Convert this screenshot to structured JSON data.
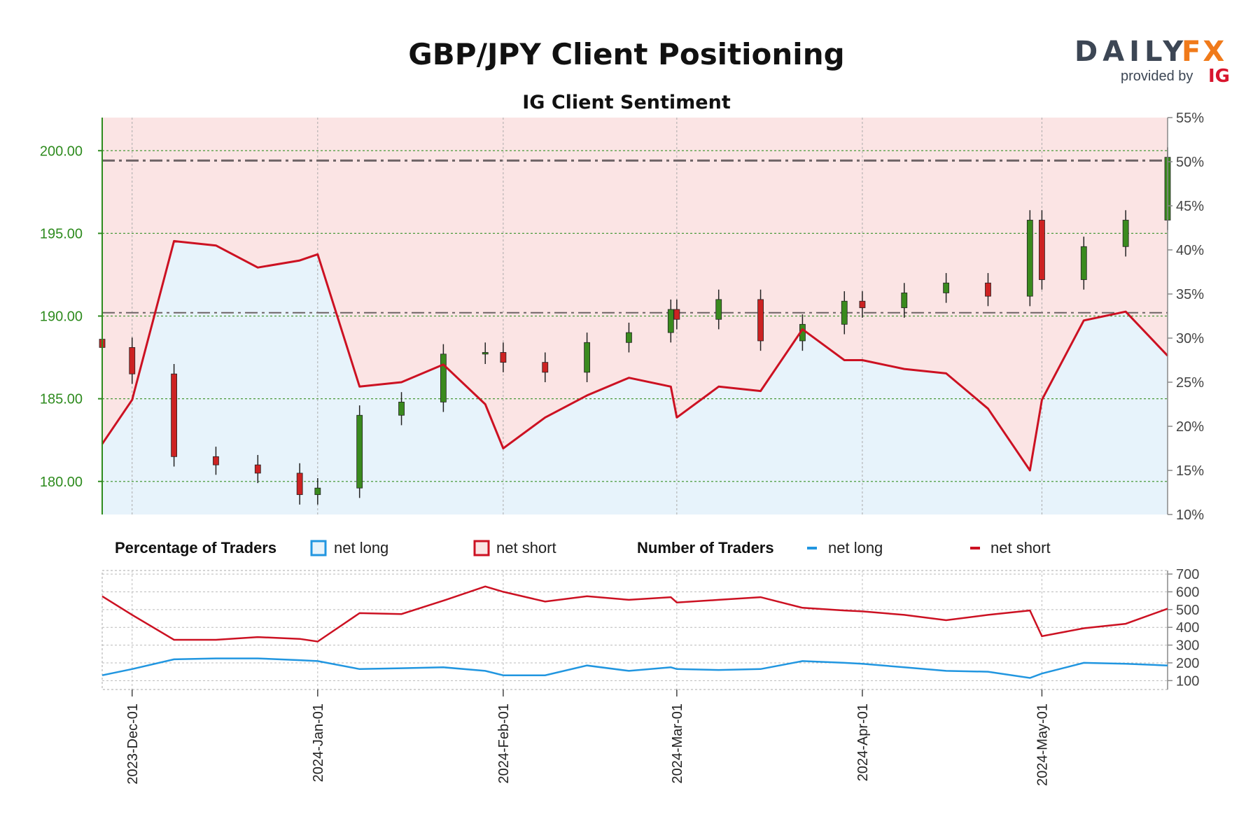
{
  "title": "GBP/JPY Client Positioning",
  "subtitle": "IG Client Sentiment",
  "brand": {
    "logo_left": "DAILY",
    "logo_right": "FX",
    "provided_by": "provided by",
    "ig": "IG",
    "colors": {
      "dark": "#3c4654",
      "orange": "#f07a1a",
      "ig_red": "#d8152d"
    }
  },
  "colors": {
    "price_axis": "#2e8b1e",
    "net_long_fill": "#e7f3fb",
    "net_short_fill": "#fbe4e4",
    "sentiment_line": "#cc1122",
    "long_line": "#2196e0",
    "short_line": "#cc1122",
    "candle_up": "#3a8a1e",
    "candle_down": "#cc2222"
  },
  "legend": {
    "pct_title": "Percentage of Traders",
    "pct_long": "net long",
    "pct_short": "net short",
    "num_title": "Number of Traders",
    "num_long": "net long",
    "num_short": "net short"
  },
  "chart_data": {
    "type": "line",
    "dates": [
      "2023-11-26",
      "2023-12-01",
      "2023-12-08",
      "2023-12-15",
      "2023-12-22",
      "2023-12-29",
      "2024-01-01",
      "2024-01-08",
      "2024-01-15",
      "2024-01-22",
      "2024-01-29",
      "2024-02-01",
      "2024-02-08",
      "2024-02-15",
      "2024-02-22",
      "2024-02-29",
      "2024-03-01",
      "2024-03-08",
      "2024-03-15",
      "2024-03-22",
      "2024-03-29",
      "2024-04-01",
      "2024-04-08",
      "2024-04-15",
      "2024-04-22",
      "2024-04-29",
      "2024-05-01",
      "2024-05-08",
      "2024-05-15",
      "2024-05-22"
    ],
    "x_ticks": [
      "2023-Dec-01",
      "2024-Jan-01",
      "2024-Feb-01",
      "2024-Mar-01",
      "2024-Apr-01",
      "2024-May-01"
    ],
    "price_axis": {
      "ticks": [
        "180.00",
        "185.00",
        "190.00",
        "195.00",
        "200.00"
      ],
      "ylim": [
        178,
        202
      ]
    },
    "pct_axis": {
      "ticks": [
        "10%",
        "15%",
        "20%",
        "25%",
        "30%",
        "35%",
        "40%",
        "45%",
        "50%",
        "55%"
      ],
      "ylim": [
        10,
        55
      ]
    },
    "num_axis": {
      "ticks": [
        "100",
        "200",
        "300",
        "400",
        "500",
        "600",
        "700"
      ],
      "ylim": [
        50,
        720
      ]
    },
    "price_reference_lines": [
      199.4,
      190.2
    ],
    "gbpjpy_close": [
      188.1,
      186.5,
      181.5,
      181.0,
      180.5,
      179.2,
      179.6,
      184.0,
      184.8,
      187.7,
      187.8,
      187.2,
      186.6,
      188.4,
      189.0,
      190.4,
      189.8,
      191.0,
      188.5,
      189.5,
      190.9,
      190.5,
      191.4,
      192.0,
      191.2,
      195.8,
      192.2,
      194.2,
      195.8,
      199.6
    ],
    "series": [
      {
        "name": "net long",
        "pct": [
          18.0,
          23.0,
          41.0,
          40.5,
          38.0,
          38.8,
          39.5,
          24.5,
          25.0,
          27.0,
          22.5,
          17.5,
          21.0,
          23.5,
          25.5,
          24.5,
          21.0,
          24.5,
          24.0,
          31.0,
          27.5,
          27.5,
          26.5,
          26.0,
          22.0,
          15.0,
          23.0,
          32.0,
          33.0,
          28.0
        ],
        "count": [
          130,
          165,
          220,
          225,
          225,
          215,
          210,
          165,
          170,
          175,
          155,
          130,
          130,
          185,
          155,
          175,
          165,
          160,
          165,
          210,
          200,
          195,
          175,
          155,
          150,
          115,
          140,
          200,
          195,
          185
        ]
      },
      {
        "name": "net short",
        "pct": [
          82.0,
          77.0,
          59.0,
          59.5,
          62.0,
          61.2,
          60.5,
          75.5,
          75.0,
          73.0,
          77.5,
          82.5,
          79.0,
          76.5,
          74.5,
          75.5,
          79.0,
          75.5,
          76.0,
          69.0,
          72.5,
          72.5,
          73.5,
          74.0,
          78.0,
          85.0,
          77.0,
          68.0,
          67.0,
          72.0
        ],
        "count": [
          575,
          470,
          330,
          330,
          345,
          335,
          320,
          480,
          475,
          550,
          630,
          600,
          545,
          575,
          555,
          570,
          540,
          555,
          570,
          510,
          495,
          490,
          470,
          440,
          470,
          495,
          350,
          395,
          420,
          505
        ]
      }
    ]
  }
}
